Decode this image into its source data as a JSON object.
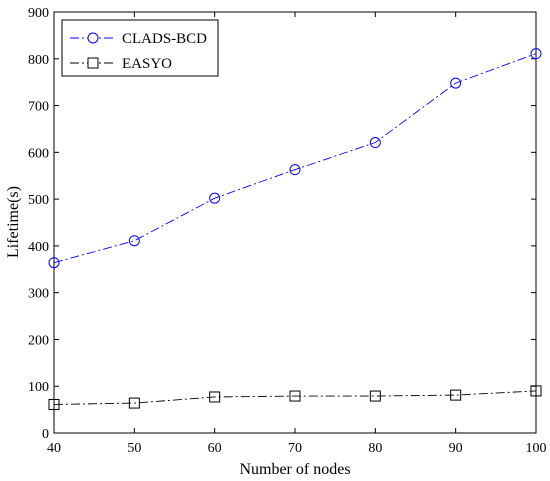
{
  "chart_data": {
    "type": "line",
    "title": "",
    "xlabel": "Number of nodes",
    "ylabel": "Lifetime(s)",
    "x": [
      40,
      50,
      60,
      70,
      80,
      90,
      100
    ],
    "xlim": [
      40,
      100
    ],
    "ylim": [
      0,
      900
    ],
    "xticks": [
      "40",
      "50",
      "60",
      "70",
      "80",
      "90",
      "100"
    ],
    "yticks": [
      "0",
      "100",
      "200",
      "300",
      "400",
      "500",
      "600",
      "700",
      "800",
      "900"
    ],
    "grid": false,
    "legend_position": "top-left",
    "series": [
      {
        "name": "CLADS-BCD",
        "values": [
          364,
          411,
          502,
          563,
          621,
          748,
          811
        ],
        "color": "#0000ff",
        "marker": "circle"
      },
      {
        "name": "EASYO",
        "values": [
          61,
          64,
          77,
          79,
          79,
          81,
          90
        ],
        "color": "#000000",
        "marker": "square"
      }
    ]
  }
}
